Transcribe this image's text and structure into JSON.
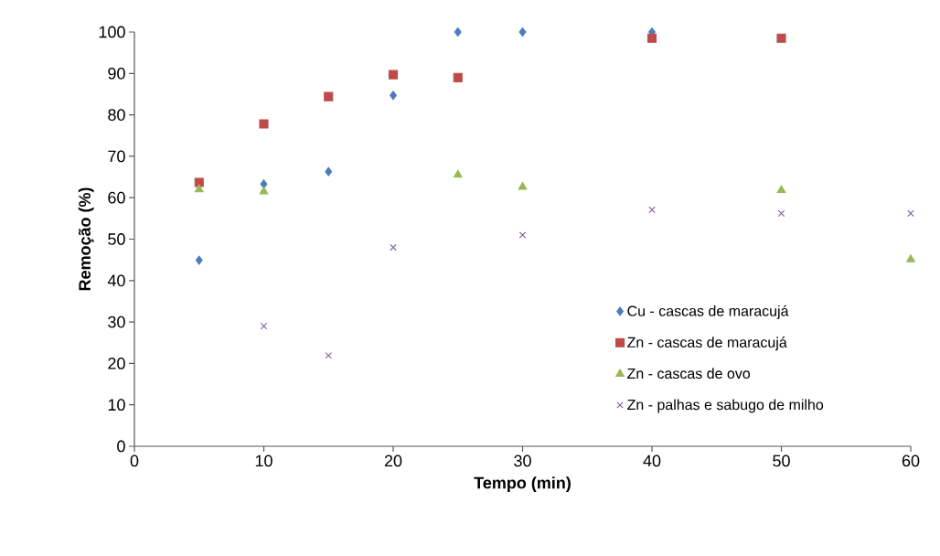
{
  "chart_data": {
    "type": "scatter",
    "xlabel": "Tempo (min)",
    "ylabel": "Remoção (%)",
    "xlim": [
      0,
      60
    ],
    "xticks": [
      0,
      10,
      20,
      30,
      40,
      50,
      60
    ],
    "ylim": [
      0,
      100
    ],
    "yticks": [
      0,
      10,
      20,
      30,
      40,
      50,
      60,
      70,
      80,
      90,
      100
    ],
    "grid": false,
    "legend": "bottom right",
    "series": [
      {
        "name": "Cu - cascas de maracujá",
        "color": "#4a7ebb",
        "marker": "diamond",
        "x": [
          5,
          10,
          15,
          20,
          25,
          30,
          40
        ],
        "values": [
          44.9,
          63.3,
          66.3,
          84.7,
          100,
          100,
          100
        ]
      },
      {
        "name": "Zn - cascas de maracujá",
        "color": "#be4b48",
        "marker": "square",
        "x": [
          5,
          10,
          15,
          20,
          25,
          40,
          50
        ],
        "values": [
          63.7,
          77.8,
          84.4,
          89.7,
          89.0,
          98.5,
          98.5
        ]
      },
      {
        "name": "Zn - cascas de ovo",
        "color": "#98b954",
        "marker": "triangle",
        "x": [
          5,
          10,
          25,
          30,
          50,
          60
        ],
        "values": [
          62.0,
          61.5,
          65.5,
          62.6,
          61.8,
          45.1
        ]
      },
      {
        "name": "Zn - palhas e sabugo de milho",
        "color": "#7d60a0",
        "marker": "cross",
        "x": [
          10,
          15,
          20,
          30,
          40,
          50,
          60
        ],
        "values": [
          29.0,
          21.9,
          48.0,
          51.0,
          57.1,
          56.2,
          56.2
        ]
      }
    ]
  }
}
